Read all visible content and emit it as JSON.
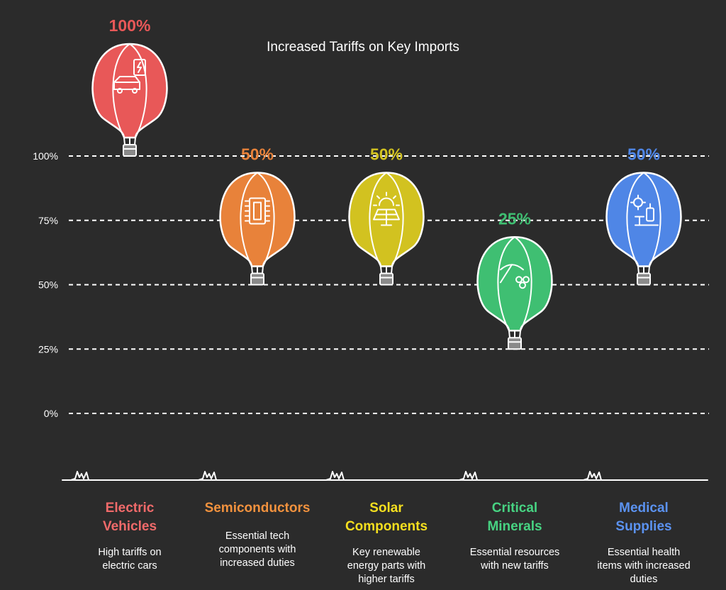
{
  "chart_data": {
    "type": "pictorial-bar",
    "title": "Increased Tariffs on Key Imports",
    "ylim": [
      0,
      100
    ],
    "yticks": [
      {
        "value": 100,
        "label": "100%"
      },
      {
        "value": 75,
        "label": "75%"
      },
      {
        "value": 50,
        "label": "50%"
      },
      {
        "value": 25,
        "label": "25%"
      },
      {
        "value": 0,
        "label": "0%"
      }
    ],
    "categories": [
      {
        "name_lines": [
          "Electric",
          "Vehicles"
        ],
        "value": 100,
        "value_label": "100%",
        "color": "#e85858",
        "icon": "electric-car-icon",
        "desc_lines": [
          "High tariffs on",
          "electric cars"
        ]
      },
      {
        "name_lines": [
          "Semiconductors"
        ],
        "value": 50,
        "value_label": "50%",
        "color": "#e8823a",
        "icon": "microchip-icon",
        "desc_lines": [
          "Essential tech",
          "components with",
          "increased duties"
        ]
      },
      {
        "name_lines": [
          "Solar",
          "Components"
        ],
        "value": 50,
        "value_label": "50%",
        "color": "#d2c220",
        "icon": "solar-panel-icon",
        "desc_lines": [
          "Key renewable",
          "energy parts with",
          "higher tariffs"
        ]
      },
      {
        "name_lines": [
          "Critical",
          "Minerals"
        ],
        "value": 25,
        "value_label": "25%",
        "color": "#3fbf72",
        "icon": "pickaxe-minerals-icon",
        "desc_lines": [
          "Essential resources",
          "with new tariffs"
        ]
      },
      {
        "name_lines": [
          "Medical",
          "Supplies"
        ],
        "value": 50,
        "value_label": "50%",
        "color": "#4f86e6",
        "icon": "medical-supplies-icon",
        "desc_lines": [
          "Essential health",
          "items with increased",
          "duties"
        ]
      }
    ],
    "label_colors": {
      "Electric Vehicles": "#f06a6a",
      "Semiconductors": "#f2923e",
      "Solar Components": "#f5df1f",
      "Critical Minerals": "#47d382",
      "Medical Supplies": "#5b92f0"
    }
  }
}
